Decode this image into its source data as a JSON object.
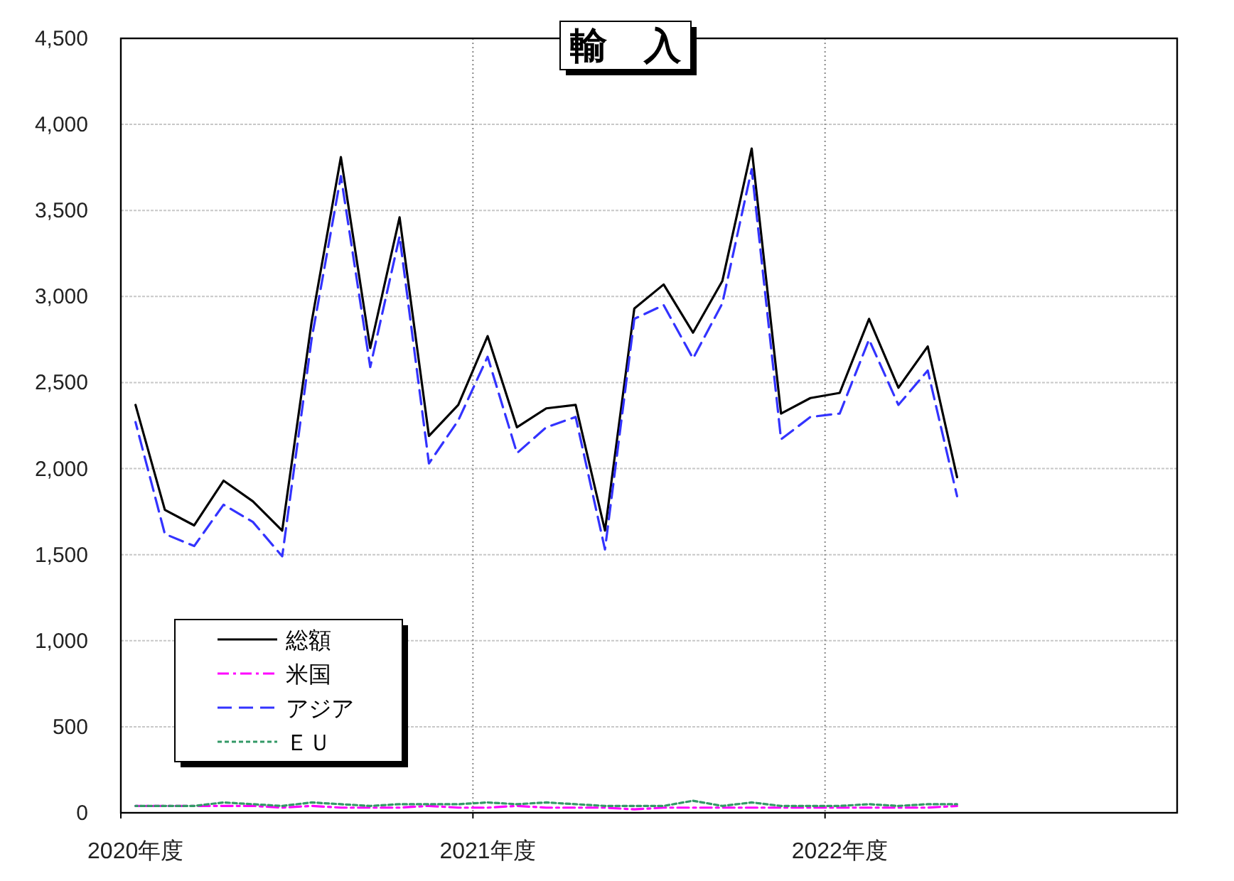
{
  "chart_data": {
    "type": "line",
    "title": "輸　入",
    "categories": [
      "2020年度",
      null,
      null,
      null,
      null,
      null,
      null,
      null,
      null,
      null,
      null,
      null,
      "2021年度",
      null,
      null,
      null,
      null,
      null,
      null,
      null,
      null,
      null,
      null,
      null,
      "2022年度",
      null,
      null,
      null,
      null,
      null,
      null,
      null,
      null,
      null,
      null,
      null
    ],
    "ylim": [
      0,
      4500
    ],
    "yticks": [
      {
        "value": 0,
        "label": "0"
      },
      {
        "value": 500,
        "label": "500"
      },
      {
        "value": 1000,
        "label": "1,000"
      },
      {
        "value": 1500,
        "label": "1,500"
      },
      {
        "value": 2000,
        "label": "2,000"
      },
      {
        "value": 2500,
        "label": "2,500"
      },
      {
        "value": 3000,
        "label": "3,000"
      },
      {
        "value": 3500,
        "label": "3,500"
      },
      {
        "value": 4000,
        "label": "4,000"
      },
      {
        "value": 4500,
        "label": "4,500"
      }
    ],
    "grid": true,
    "legend": "bottom left",
    "marker": "none",
    "series": [
      {
        "name": "総額",
        "color": "#000000",
        "line_style": "solid",
        "values": [
          2370,
          1760,
          1670,
          1930,
          1810,
          1640,
          2850,
          3810,
          2700,
          3460,
          2190,
          2370,
          2770,
          2240,
          2350,
          2370,
          1640,
          2930,
          3070,
          2790,
          3090,
          3860,
          2320,
          2410,
          2440,
          2870,
          2470,
          2710,
          1950,
          null,
          null,
          null,
          null,
          null,
          null,
          null
        ]
      },
      {
        "name": "米国",
        "color": "#ff00ff",
        "line_style": "dashdot",
        "values": [
          40,
          40,
          40,
          40,
          40,
          30,
          40,
          30,
          30,
          30,
          40,
          30,
          30,
          40,
          30,
          30,
          30,
          20,
          30,
          30,
          30,
          30,
          30,
          30,
          30,
          30,
          30,
          30,
          40,
          null,
          null,
          null,
          null,
          null,
          null,
          null
        ]
      },
      {
        "name": "アジア",
        "color": "#3333ff",
        "line_style": "dashed",
        "values": [
          2270,
          1620,
          1550,
          1790,
          1690,
          1490,
          2750,
          3700,
          2590,
          3350,
          2030,
          2280,
          2650,
          2090,
          2240,
          2300,
          1530,
          2870,
          2950,
          2640,
          2960,
          3740,
          2170,
          2300,
          2320,
          2750,
          2370,
          2570,
          1840,
          null,
          null,
          null,
          null,
          null,
          null,
          null
        ]
      },
      {
        "name": "ＥＵ",
        "color": "#339966",
        "line_style": "dotted",
        "values": [
          40,
          40,
          40,
          60,
          50,
          40,
          60,
          50,
          40,
          50,
          50,
          50,
          60,
          50,
          60,
          50,
          40,
          40,
          40,
          70,
          40,
          60,
          40,
          40,
          40,
          50,
          40,
          50,
          50,
          null,
          null,
          null,
          null,
          null,
          null,
          null
        ]
      }
    ]
  }
}
